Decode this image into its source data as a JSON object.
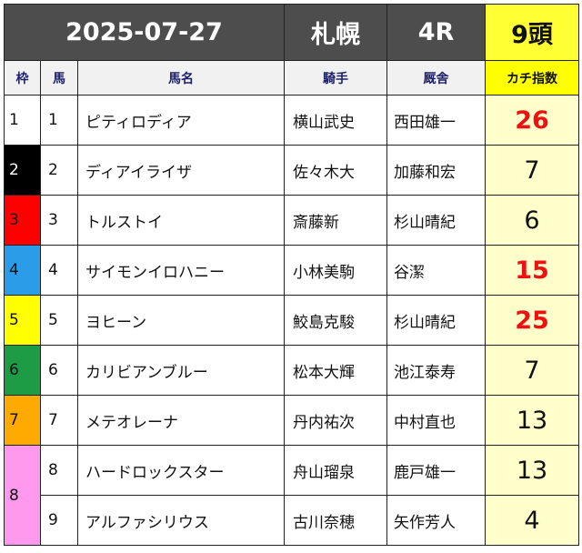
{
  "header": {
    "date": "2025-07-27",
    "venue": "札幌",
    "race": "4R",
    "runners": "9頭"
  },
  "columns": {
    "frame": "枠",
    "number": "馬",
    "horse": "馬名",
    "jockey": "騎手",
    "trainer": "厩舎",
    "index": "カチ指数"
  },
  "frame_colors": {
    "1": "#ffffff",
    "2": "#000000",
    "3": "#ff0000",
    "4": "#2b9de8",
    "5": "#ffff00",
    "6": "#1d9b45",
    "7": "#ffaa00",
    "8": "#ff99ee"
  },
  "highlight_color": "#ee1111",
  "rows": [
    {
      "frame": "1",
      "number": "1",
      "horse": "ピティロディア",
      "jockey": "横山武史",
      "trainer": "西田雄一",
      "index": "26",
      "highlight": true
    },
    {
      "frame": "2",
      "number": "2",
      "horse": "ディアイライザ",
      "jockey": "佐々木大",
      "trainer": "加藤和宏",
      "index": "7",
      "highlight": false
    },
    {
      "frame": "3",
      "number": "3",
      "horse": "トルストイ",
      "jockey": "斎藤新",
      "trainer": "杉山晴紀",
      "index": "6",
      "highlight": false
    },
    {
      "frame": "4",
      "number": "4",
      "horse": "サイモンイロハニー",
      "jockey": "小林美駒",
      "trainer": "谷潔",
      "index": "15",
      "highlight": true
    },
    {
      "frame": "5",
      "number": "5",
      "horse": "ヨヒーン",
      "jockey": "鮫島克駿",
      "trainer": "杉山晴紀",
      "index": "25",
      "highlight": true
    },
    {
      "frame": "6",
      "number": "6",
      "horse": "カリビアンブルー",
      "jockey": "松本大輝",
      "trainer": "池江泰寿",
      "index": "7",
      "highlight": false
    },
    {
      "frame": "7",
      "number": "7",
      "horse": "メテオレーナ",
      "jockey": "丹内祐次",
      "trainer": "中村直也",
      "index": "13",
      "highlight": false
    },
    {
      "frame": "8",
      "number": "8",
      "horse": "ハードロックスター",
      "jockey": "舟山瑠泉",
      "trainer": "鹿戸雄一",
      "index": "13",
      "highlight": false
    },
    {
      "frame": "8",
      "number": "9",
      "horse": "アルファシリウス",
      "jockey": "古川奈穂",
      "trainer": "矢作芳人",
      "index": "4",
      "highlight": false
    }
  ]
}
